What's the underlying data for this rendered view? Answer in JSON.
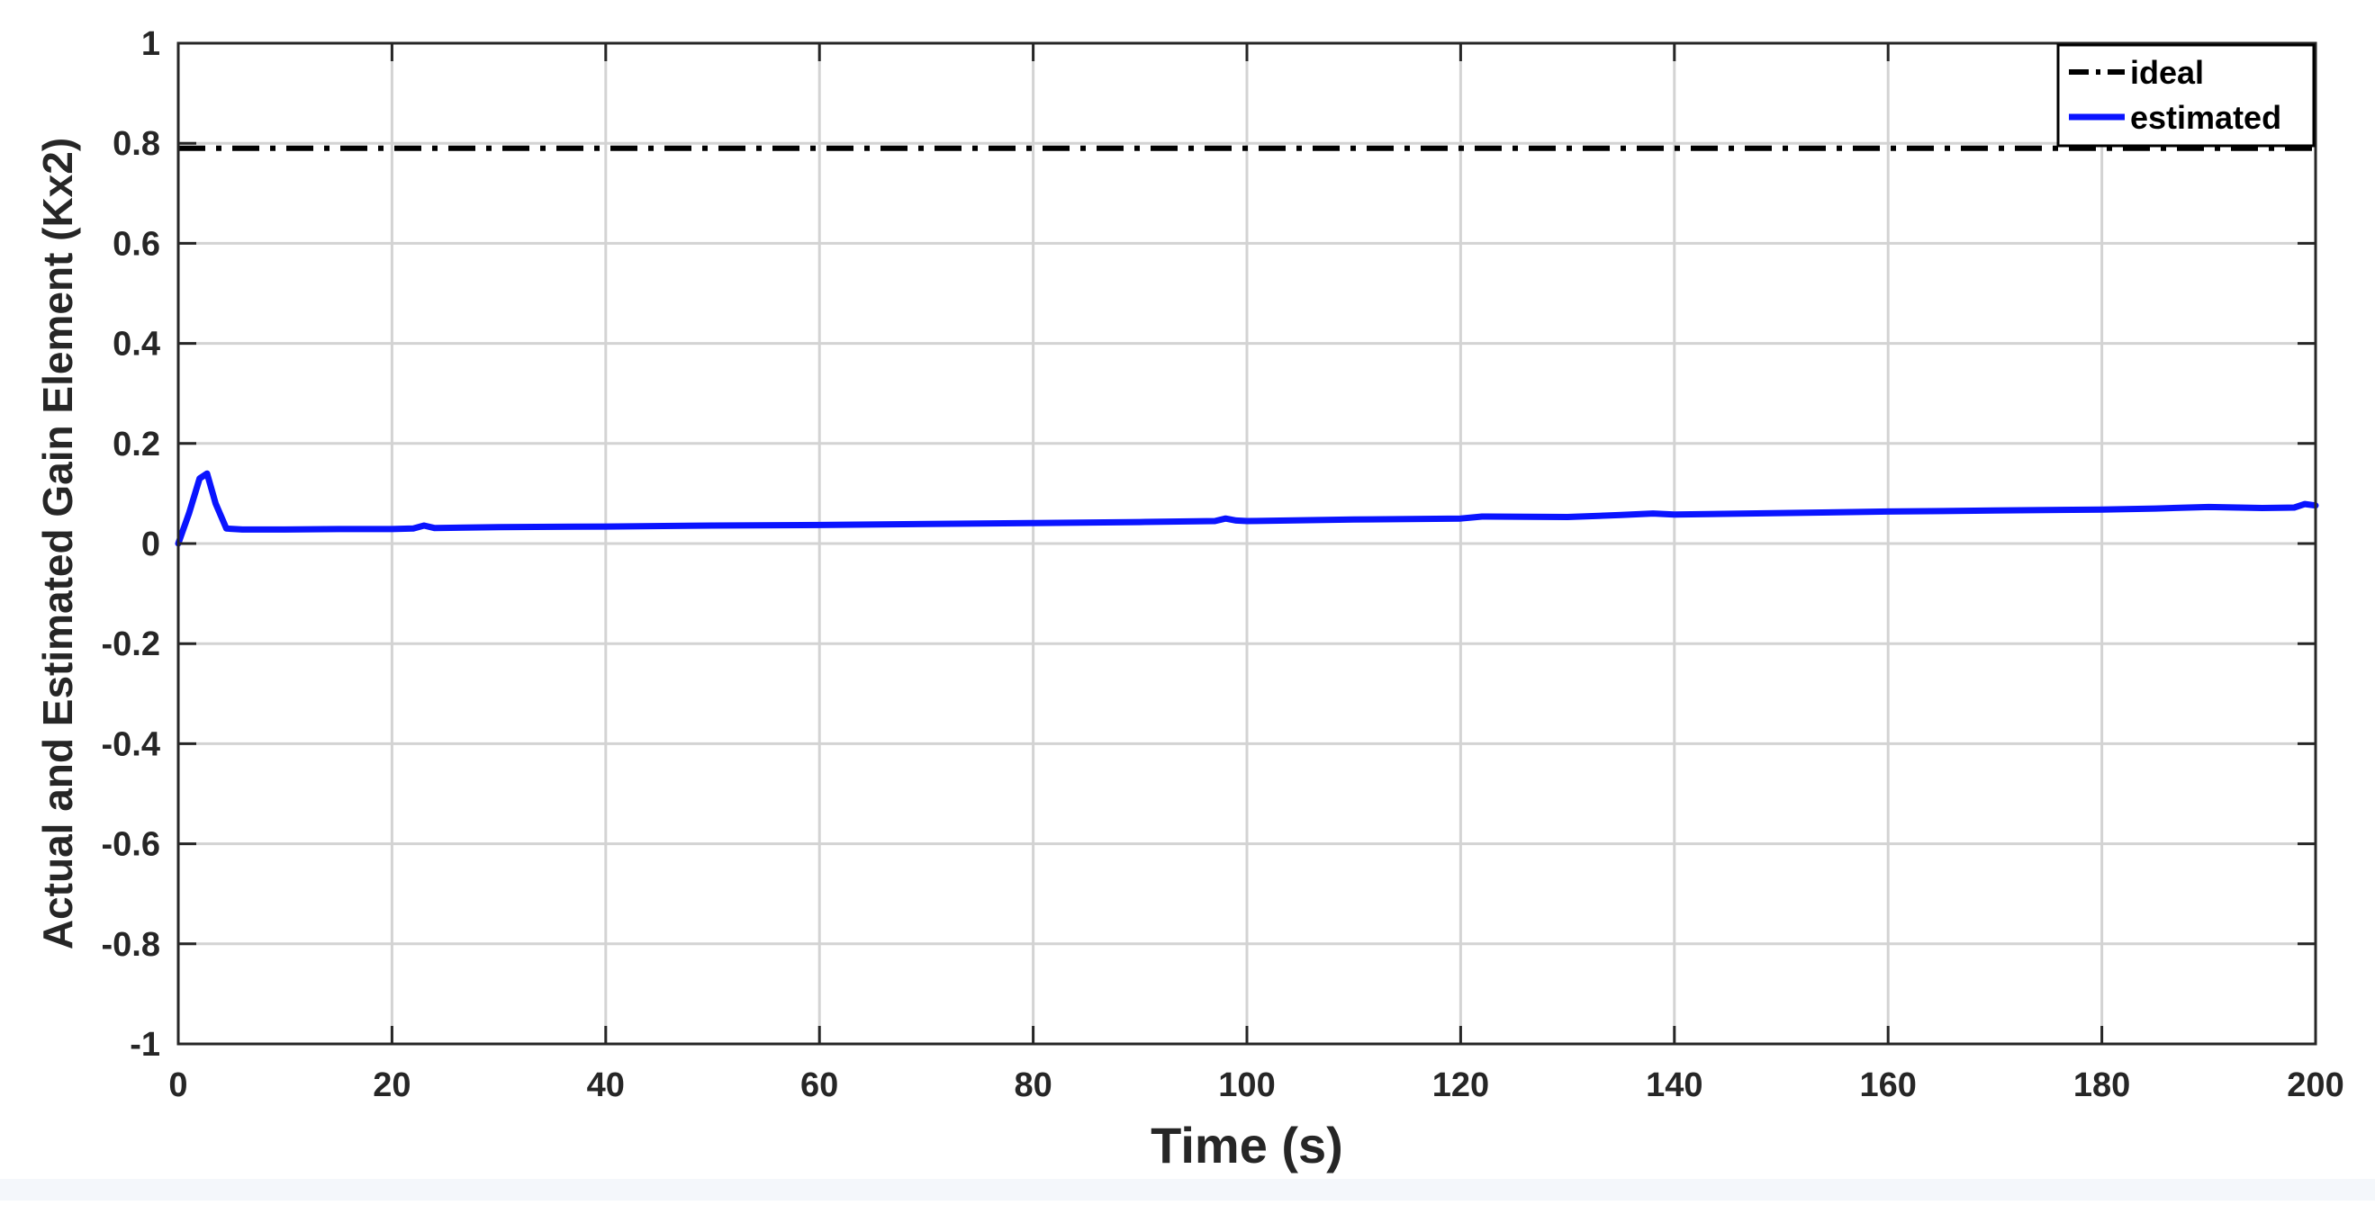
{
  "chart_data": {
    "type": "line",
    "xlabel": "Time (s)",
    "ylabel": "Actual and Estimated Gain Element (Kx2)",
    "xlim": [
      0,
      200
    ],
    "ylim": [
      -1,
      1
    ],
    "x_ticks": [
      0,
      20,
      40,
      60,
      80,
      100,
      120,
      140,
      160,
      180,
      200
    ],
    "y_ticks": [
      -1,
      -0.8,
      -0.6,
      -0.4,
      -0.2,
      0,
      0.2,
      0.4,
      0.6,
      0.8,
      1
    ],
    "x_tick_labels": [
      "0",
      "20",
      "40",
      "60",
      "80",
      "100",
      "120",
      "140",
      "160",
      "180",
      "200"
    ],
    "y_tick_labels": [
      "-1",
      "-0.8",
      "-0.6",
      "-0.4",
      "-0.2",
      "0",
      "0.2",
      "0.4",
      "0.6",
      "0.8",
      "1"
    ],
    "grid": true,
    "legend_position": "top-right",
    "series": [
      {
        "name": "ideal",
        "color": "#000000",
        "style": "dash-dot",
        "x": [
          0,
          200
        ],
        "y": [
          0.79,
          0.79
        ]
      },
      {
        "name": "estimated",
        "color": "#0a14ff",
        "style": "solid",
        "x": [
          0,
          1,
          2,
          2.7,
          3.5,
          4.5,
          6,
          10,
          15,
          20,
          22,
          23,
          24,
          30,
          40,
          50,
          60,
          70,
          80,
          90,
          97,
          98,
          99,
          100,
          110,
          120,
          122,
          130,
          135,
          138,
          140,
          150,
          160,
          170,
          180,
          185,
          190,
          195,
          198,
          199,
          200
        ],
        "y": [
          0,
          0.06,
          0.13,
          0.14,
          0.08,
          0.03,
          0.028,
          0.028,
          0.029,
          0.029,
          0.03,
          0.036,
          0.031,
          0.033,
          0.034,
          0.036,
          0.037,
          0.039,
          0.041,
          0.043,
          0.045,
          0.05,
          0.046,
          0.045,
          0.048,
          0.05,
          0.054,
          0.053,
          0.057,
          0.06,
          0.058,
          0.061,
          0.064,
          0.066,
          0.068,
          0.07,
          0.073,
          0.071,
          0.072,
          0.079,
          0.076
        ]
      }
    ]
  }
}
